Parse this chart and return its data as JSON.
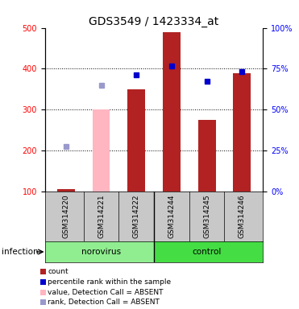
{
  "title": "GDS3549 / 1423334_at",
  "samples": [
    "GSM314220",
    "GSM314221",
    "GSM314222",
    "GSM314244",
    "GSM314245",
    "GSM314246"
  ],
  "count_values": [
    107,
    null,
    350,
    490,
    275,
    390
  ],
  "percentile_values": [
    null,
    null,
    385,
    407,
    370,
    393
  ],
  "absent_bar_values": [
    null,
    300,
    null,
    null,
    null,
    null
  ],
  "absent_rank_values": [
    210,
    360,
    null,
    null,
    null,
    null
  ],
  "bar_color": "#B22222",
  "absent_bar_color": "#FFB6C1",
  "percentile_color": "#0000CD",
  "absent_rank_color": "#9999CC",
  "ylim_left": [
    100,
    500
  ],
  "ylim_right": [
    0,
    100
  ],
  "yticks_left": [
    100,
    200,
    300,
    400,
    500
  ],
  "yticks_right": [
    0,
    25,
    50,
    75,
    100
  ],
  "ytick_labels_right": [
    "0%",
    "25%",
    "50%",
    "75%",
    "100%"
  ],
  "legend_items": [
    {
      "label": "count",
      "color": "#B22222"
    },
    {
      "label": "percentile rank within the sample",
      "color": "#0000CD"
    },
    {
      "label": "value, Detection Call = ABSENT",
      "color": "#FFB6C1"
    },
    {
      "label": "rank, Detection Call = ABSENT",
      "color": "#9999CC"
    }
  ],
  "norovirus_color": "#90EE90",
  "control_color": "#44DD44",
  "sample_bg_color": "#C8C8C8",
  "figsize": [
    3.71,
    3.84
  ],
  "dpi": 100,
  "title_fontsize": 10,
  "tick_fontsize": 7,
  "bar_width": 0.5
}
